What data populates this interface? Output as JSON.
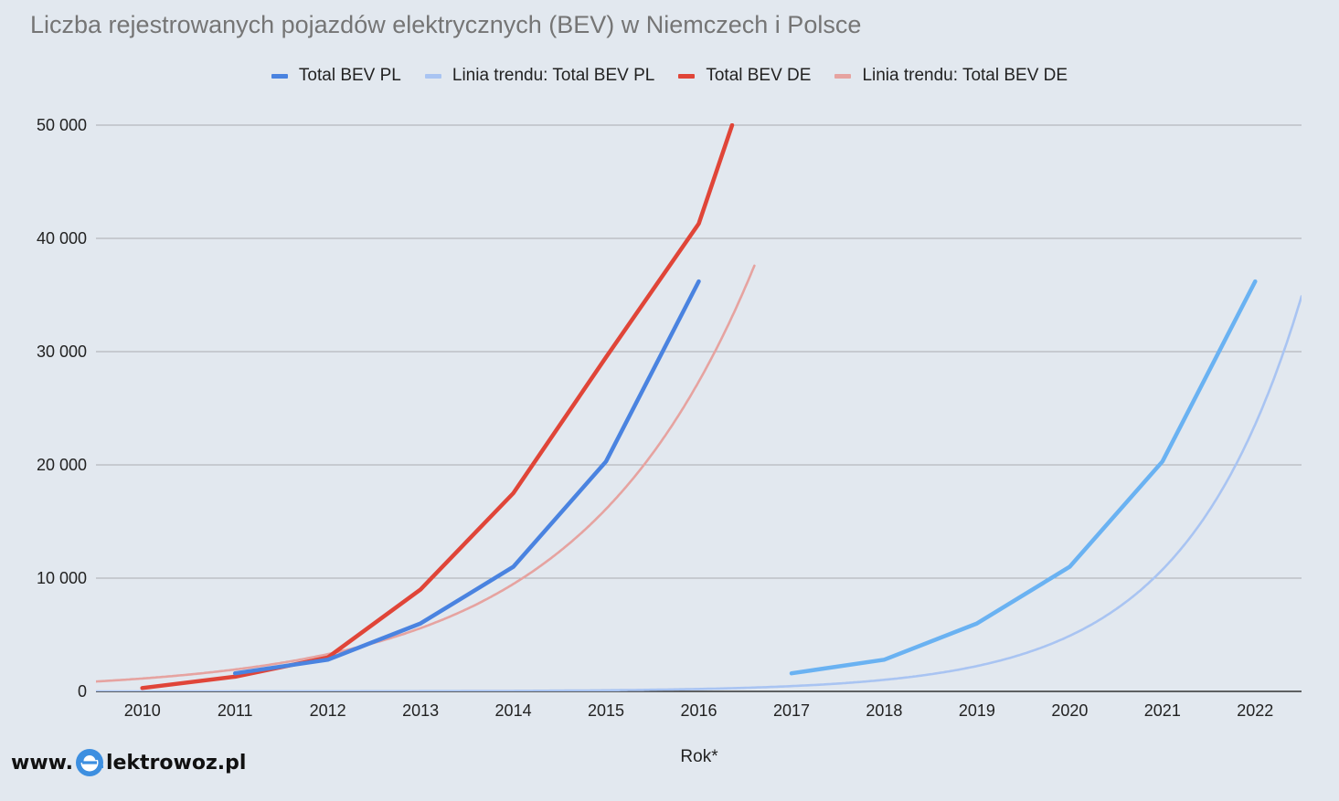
{
  "chart_data": {
    "type": "line",
    "title": "Liczba rejestrowanych pojazdów elektrycznych (BEV) w Niemczech i Polsce",
    "xlabel": "Rok*",
    "ylabel": "",
    "x": [
      2010,
      2011,
      2012,
      2013,
      2014,
      2015,
      2016,
      2017,
      2018,
      2019,
      2020,
      2021,
      2022
    ],
    "ylim": [
      0,
      50000
    ],
    "yticks": [
      0,
      10000,
      20000,
      30000,
      40000,
      50000
    ],
    "ytick_labels": [
      "0",
      "10 000",
      "20 000",
      "30 000",
      "40 000",
      "50 000"
    ],
    "grid": true,
    "legend_position": "top",
    "series": [
      {
        "name": "Total BEV PL",
        "color": "#4a83e0",
        "x": [
          2011,
          2012,
          2013,
          2014,
          2015,
          2016
        ],
        "values": [
          1600,
          2800,
          6000,
          11000,
          20300,
          36200
        ]
      },
      {
        "name": "Linia trendu: Total BEV PL",
        "color": "#a9c4f2",
        "trend": "exponential",
        "trend_a": 1.92,
        "trend_b": 0.7846,
        "trend_range": [
          2009.5,
          2022.5
        ]
      },
      {
        "name": "Total BEV DE",
        "color": "#e04538",
        "x": [
          2010,
          2011,
          2012,
          2013,
          2014,
          2015,
          2016,
          2016.36
        ],
        "values": [
          300,
          1300,
          3000,
          9000,
          17500,
          29500,
          41300,
          50000
        ]
      },
      {
        "name": "Linia trendu: Total BEV DE",
        "color": "#e6a3a0",
        "trend": "exponential",
        "trend_a": 1139.6,
        "trend_b": 0.5297,
        "trend_range": [
          2009.5,
          2016.6
        ]
      }
    ],
    "extra_series": [
      {
        "color": "#6ab2f2",
        "x": [
          2017,
          2018,
          2019,
          2020,
          2021,
          2022
        ],
        "values": [
          1600,
          2800,
          6000,
          11000,
          20300,
          36200
        ]
      }
    ]
  },
  "watermark": {
    "prefix": "www.",
    "suffix": "lektrowoz.pl",
    "icon": "plug-e-icon"
  }
}
